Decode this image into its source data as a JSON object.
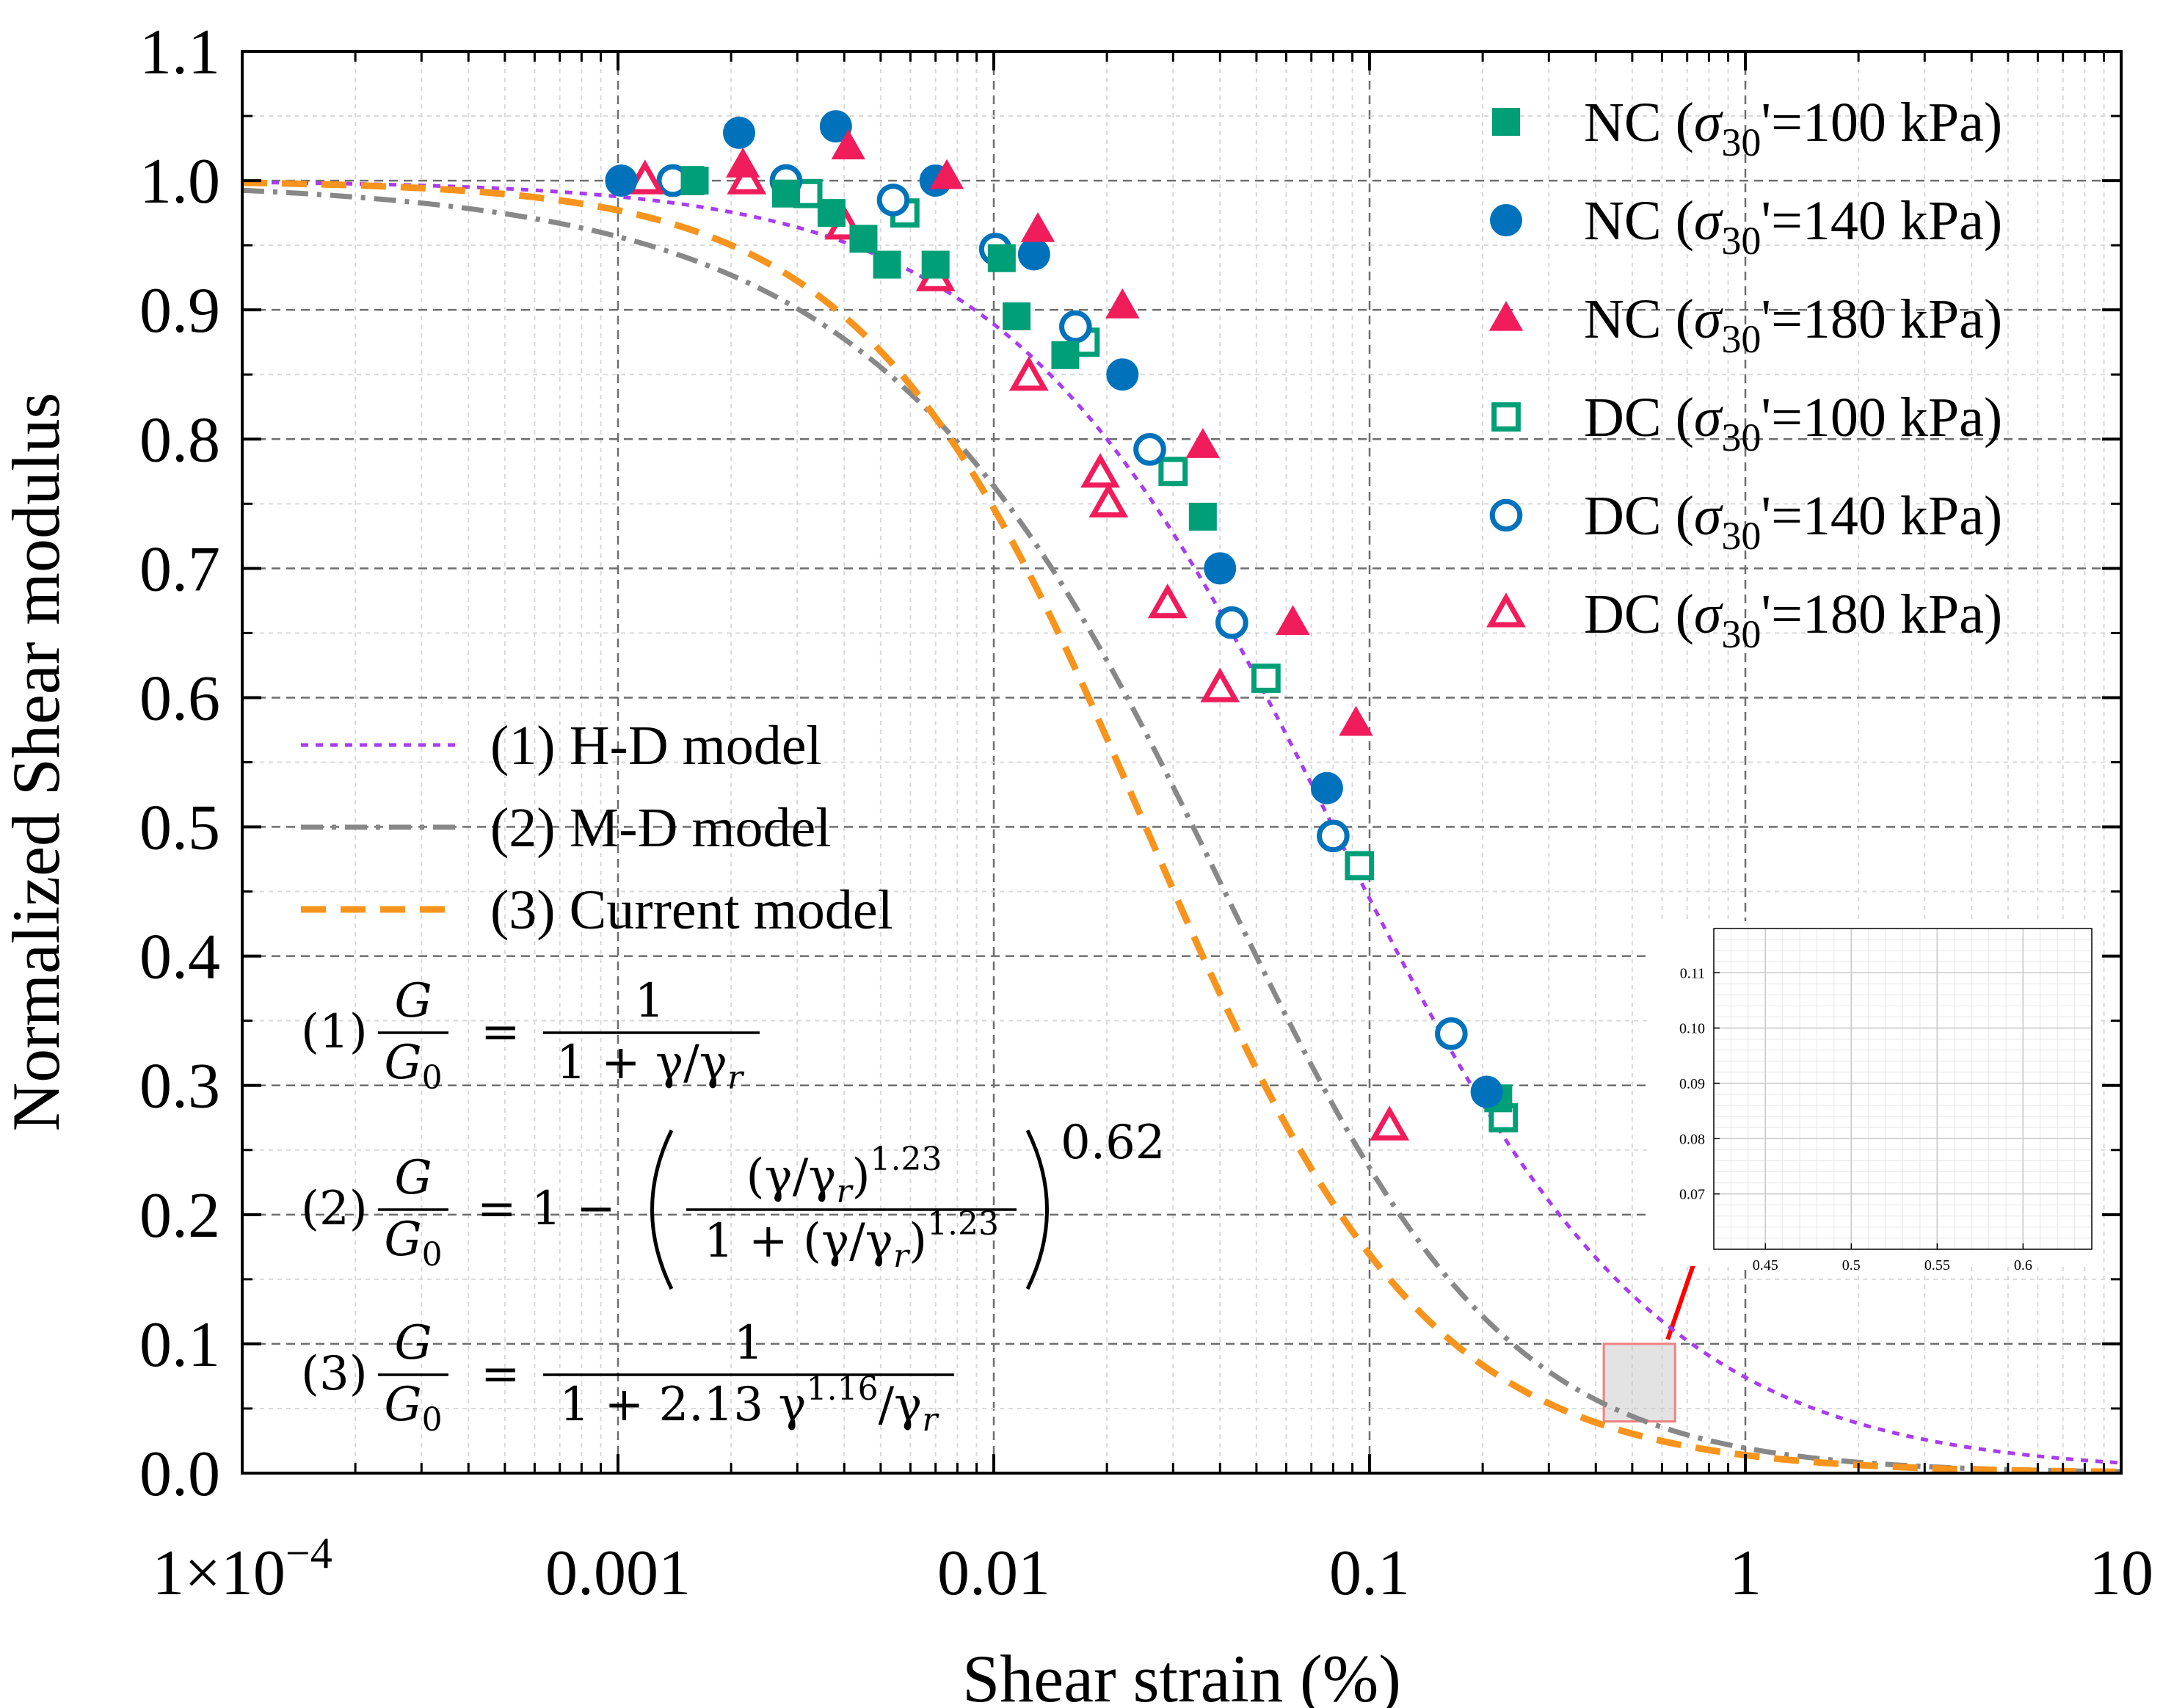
{
  "chart_data": {
    "type": "scatter",
    "title": "",
    "xlabel": "Shear strain (%)",
    "ylabel": "Normalized Shear modulus",
    "xscale": "log",
    "xlim": [
      0.0001,
      10
    ],
    "ylim": [
      0.0,
      1.1
    ],
    "grid": true,
    "x_ticks": [
      {
        "value": 0.0001,
        "label": "1×10",
        "sup": "−4"
      },
      {
        "value": 0.001,
        "label": "0.001",
        "sup": ""
      },
      {
        "value": 0.01,
        "label": "0.01",
        "sup": ""
      },
      {
        "value": 0.1,
        "label": "0.1",
        "sup": ""
      },
      {
        "value": 1,
        "label": "1",
        "sup": ""
      },
      {
        "value": 10,
        "label": "10",
        "sup": ""
      }
    ],
    "y_ticks": [
      {
        "value": 0.0,
        "label": "0.0"
      },
      {
        "value": 0.1,
        "label": "0.1"
      },
      {
        "value": 0.2,
        "label": "0.2"
      },
      {
        "value": 0.3,
        "label": "0.3"
      },
      {
        "value": 0.4,
        "label": "0.4"
      },
      {
        "value": 0.5,
        "label": "0.5"
      },
      {
        "value": 0.6,
        "label": "0.6"
      },
      {
        "value": 0.7,
        "label": "0.7"
      },
      {
        "value": 0.8,
        "label": "0.8"
      },
      {
        "value": 0.9,
        "label": "0.9"
      },
      {
        "value": 1.0,
        "label": "1.0"
      },
      {
        "value": 1.1,
        "label": "1.1"
      }
    ],
    "series": [
      {
        "name": "NC (σ30'=100 kPa)",
        "label_prefix": "NC (",
        "label_sym": "σ",
        "label_sub": "30",
        "label_suffix": "'=100 kPa)",
        "marker": "square",
        "filled": true,
        "color": "#009f77",
        "points": [
          [
            0.0016,
            1.0
          ],
          [
            0.0028,
            0.99
          ],
          [
            0.0037,
            0.975
          ],
          [
            0.0045,
            0.955
          ],
          [
            0.0052,
            0.935
          ],
          [
            0.007,
            0.935
          ],
          [
            0.0105,
            0.94
          ],
          [
            0.0115,
            0.895
          ],
          [
            0.0155,
            0.865
          ],
          [
            0.036,
            0.74
          ],
          [
            0.22,
            0.29
          ]
        ]
      },
      {
        "name": "NC (σ30'=140 kPa)",
        "label_prefix": "NC (",
        "label_sym": "σ",
        "label_sub": "30",
        "label_suffix": "'=140 kPa)",
        "marker": "circle",
        "filled": true,
        "color": "#0072bc",
        "points": [
          [
            0.00102,
            1.0
          ],
          [
            0.0021,
            1.037
          ],
          [
            0.0038,
            1.042
          ],
          [
            0.007,
            1.0
          ],
          [
            0.0128,
            0.943
          ],
          [
            0.022,
            0.85
          ],
          [
            0.04,
            0.7
          ],
          [
            0.077,
            0.53
          ],
          [
            0.205,
            0.295
          ]
        ]
      },
      {
        "name": "NC (σ30'=180 kPa)",
        "label_prefix": "NC (",
        "label_sym": "σ",
        "label_sub": "30",
        "label_suffix": "'=180 kPa)",
        "marker": "triangle",
        "filled": true,
        "color": "#f01c5c",
        "points": [
          [
            0.00215,
            1.012
          ],
          [
            0.0041,
            1.026
          ],
          [
            0.0075,
            1.003
          ],
          [
            0.0131,
            0.962
          ],
          [
            0.022,
            0.903
          ],
          [
            0.036,
            0.795
          ],
          [
            0.0625,
            0.658
          ],
          [
            0.092,
            0.58
          ]
        ]
      },
      {
        "name": "DC (σ30'=100 kPa)",
        "label_prefix": "DC (",
        "label_sym": "σ",
        "label_sub": "30",
        "label_suffix": "'=100 kPa)",
        "marker": "square",
        "filled": false,
        "color": "#009f77",
        "points": [
          [
            0.00155,
            1.0
          ],
          [
            0.0032,
            0.99
          ],
          [
            0.0058,
            0.975
          ],
          [
            0.0175,
            0.875
          ],
          [
            0.03,
            0.775
          ],
          [
            0.053,
            0.615
          ],
          [
            0.094,
            0.47
          ],
          [
            0.227,
            0.275
          ]
        ]
      },
      {
        "name": "DC (σ30'=140 kPa)",
        "label_prefix": "DC (",
        "label_sym": "σ",
        "label_sub": "30",
        "label_suffix": "'=140 kPa)",
        "marker": "circle",
        "filled": false,
        "color": "#0072bc",
        "points": [
          [
            0.0014,
            1.0
          ],
          [
            0.0028,
            1.0
          ],
          [
            0.0054,
            0.985
          ],
          [
            0.0101,
            0.947
          ],
          [
            0.0165,
            0.887
          ],
          [
            0.026,
            0.792
          ],
          [
            0.043,
            0.658
          ],
          [
            0.08,
            0.493
          ],
          [
            0.165,
            0.34
          ]
        ]
      },
      {
        "name": "DC (σ30'=180 kPa)",
        "label_prefix": "DC (",
        "label_sym": "σ",
        "label_sub": "30",
        "label_suffix": "'=180 kPa)",
        "marker": "triangle",
        "filled": false,
        "color": "#f01c5c",
        "points": [
          [
            0.00118,
            1.0
          ],
          [
            0.0022,
            1.0
          ],
          [
            0.004,
            0.965
          ],
          [
            0.007,
            0.925
          ],
          [
            0.0124,
            0.848
          ],
          [
            0.0192,
            0.773
          ],
          [
            0.0202,
            0.75
          ],
          [
            0.029,
            0.672
          ],
          [
            0.04,
            0.607
          ],
          [
            0.113,
            0.268
          ]
        ]
      }
    ],
    "models": [
      {
        "name": "(1) H-D model",
        "color": "#a93cf0",
        "dash": "dotted",
        "gamma_r": 0.08,
        "form": "hd"
      },
      {
        "name": "(2) M-D model",
        "color": "#888888",
        "dash": "dashdot",
        "gamma_r": 0.061,
        "a": 1.23,
        "b": 0.62,
        "form": "md"
      },
      {
        "name": "(3) Current model",
        "color": "#f7941d",
        "dash": "dashed",
        "gamma_r": 0.03,
        "c": 2.13,
        "n": 1.16,
        "form": "cur"
      }
    ],
    "equations": [
      {
        "id": "(1)",
        "numerator": "1",
        "denominator": "1 + γ/γ"
      },
      {
        "id": "(2)",
        "lhs_tail": "= 1 −",
        "inner_numerator": "(γ/γ",
        "inner_exp": "1.23",
        "inner_denominator": "1 + (γ/γ",
        "outer_exp": "0.62"
      },
      {
        "id": "(3)",
        "numerator": "1",
        "denominator": "1 + 2.13 γ",
        "den_exp": "1.16",
        "den_tail": "/γ"
      }
    ],
    "eq_symbols": {
      "G": "G",
      "G0": "G",
      "sub0": "0",
      "sub_r": "r",
      "eq": "="
    },
    "zoom_region": {
      "x": [
        0.42,
        0.65
      ],
      "y": [
        0.04,
        0.1
      ]
    },
    "inset": {
      "xlim": [
        0.42,
        0.64
      ],
      "ylim": [
        0.06,
        0.118
      ],
      "x_ticks": [
        {
          "value": 0.45,
          "label": "0.45"
        },
        {
          "value": 0.5,
          "label": "0.5"
        },
        {
          "value": 0.55,
          "label": "0.55"
        },
        {
          "value": 0.6,
          "label": "0.6"
        }
      ],
      "y_ticks": [
        {
          "value": 0.07,
          "label": "0.07"
        },
        {
          "value": 0.08,
          "label": "0.08"
        },
        {
          "value": 0.09,
          "label": "0.09"
        },
        {
          "value": 0.1,
          "label": "0.10"
        },
        {
          "value": 0.11,
          "label": "0.11"
        }
      ]
    }
  }
}
